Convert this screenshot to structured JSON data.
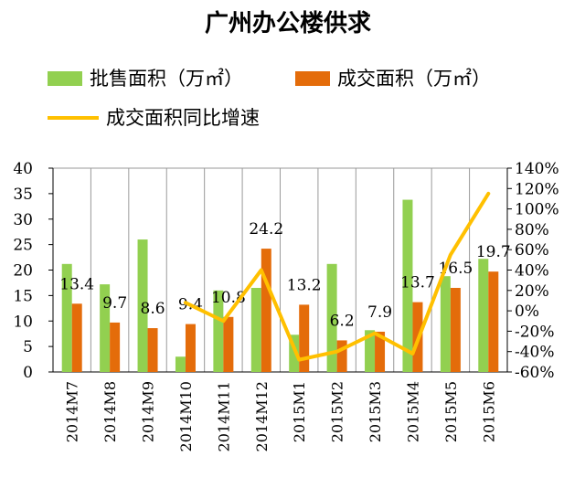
{
  "chart_data": {
    "type": "bar",
    "title": "广州办公楼供求",
    "categories": [
      "2014M7",
      "2014M8",
      "2014M9",
      "2014M10",
      "2014M11",
      "2014M12",
      "2015M1",
      "2015M2",
      "2015M3",
      "2015M4",
      "2015M5",
      "2015M6"
    ],
    "series": [
      {
        "name": "批售面积（万㎡）",
        "kind": "bar",
        "axis": "left",
        "color": "#92d050",
        "values": [
          21.2,
          17.2,
          26.0,
          3.0,
          16.0,
          16.5,
          7.3,
          21.2,
          8.2,
          33.8,
          18.8,
          22.2
        ]
      },
      {
        "name": "成交面积（万㎡）",
        "kind": "bar",
        "axis": "left",
        "color": "#e46c0a",
        "values": [
          13.4,
          9.7,
          8.6,
          9.4,
          10.8,
          24.2,
          13.2,
          6.2,
          7.9,
          13.7,
          16.5,
          19.7
        ],
        "data_labels": [
          "13.4",
          "9.7",
          "8.6",
          "9.4",
          "10.8",
          "24.2",
          "13.2",
          "6.2",
          "7.9",
          "13.7",
          "16.5",
          "19.7"
        ]
      },
      {
        "name": "成交面积同比增速",
        "kind": "line",
        "axis": "right",
        "color": "#ffc000",
        "values": [
          null,
          null,
          null,
          8,
          -10,
          40,
          -48,
          -40,
          -22,
          -42,
          55,
          115
        ]
      }
    ],
    "y_left": {
      "min": 0,
      "max": 40,
      "ticks": [
        "0",
        "5",
        "10",
        "15",
        "20",
        "25",
        "30",
        "35",
        "40"
      ]
    },
    "y_right": {
      "min": -60,
      "max": 140,
      "ticks": [
        "-60%",
        "-40%",
        "-20%",
        "0%",
        "20%",
        "40%",
        "60%",
        "80%",
        "100%",
        "120%",
        "140%"
      ]
    },
    "grid": "vertical",
    "legend_position": "top"
  }
}
